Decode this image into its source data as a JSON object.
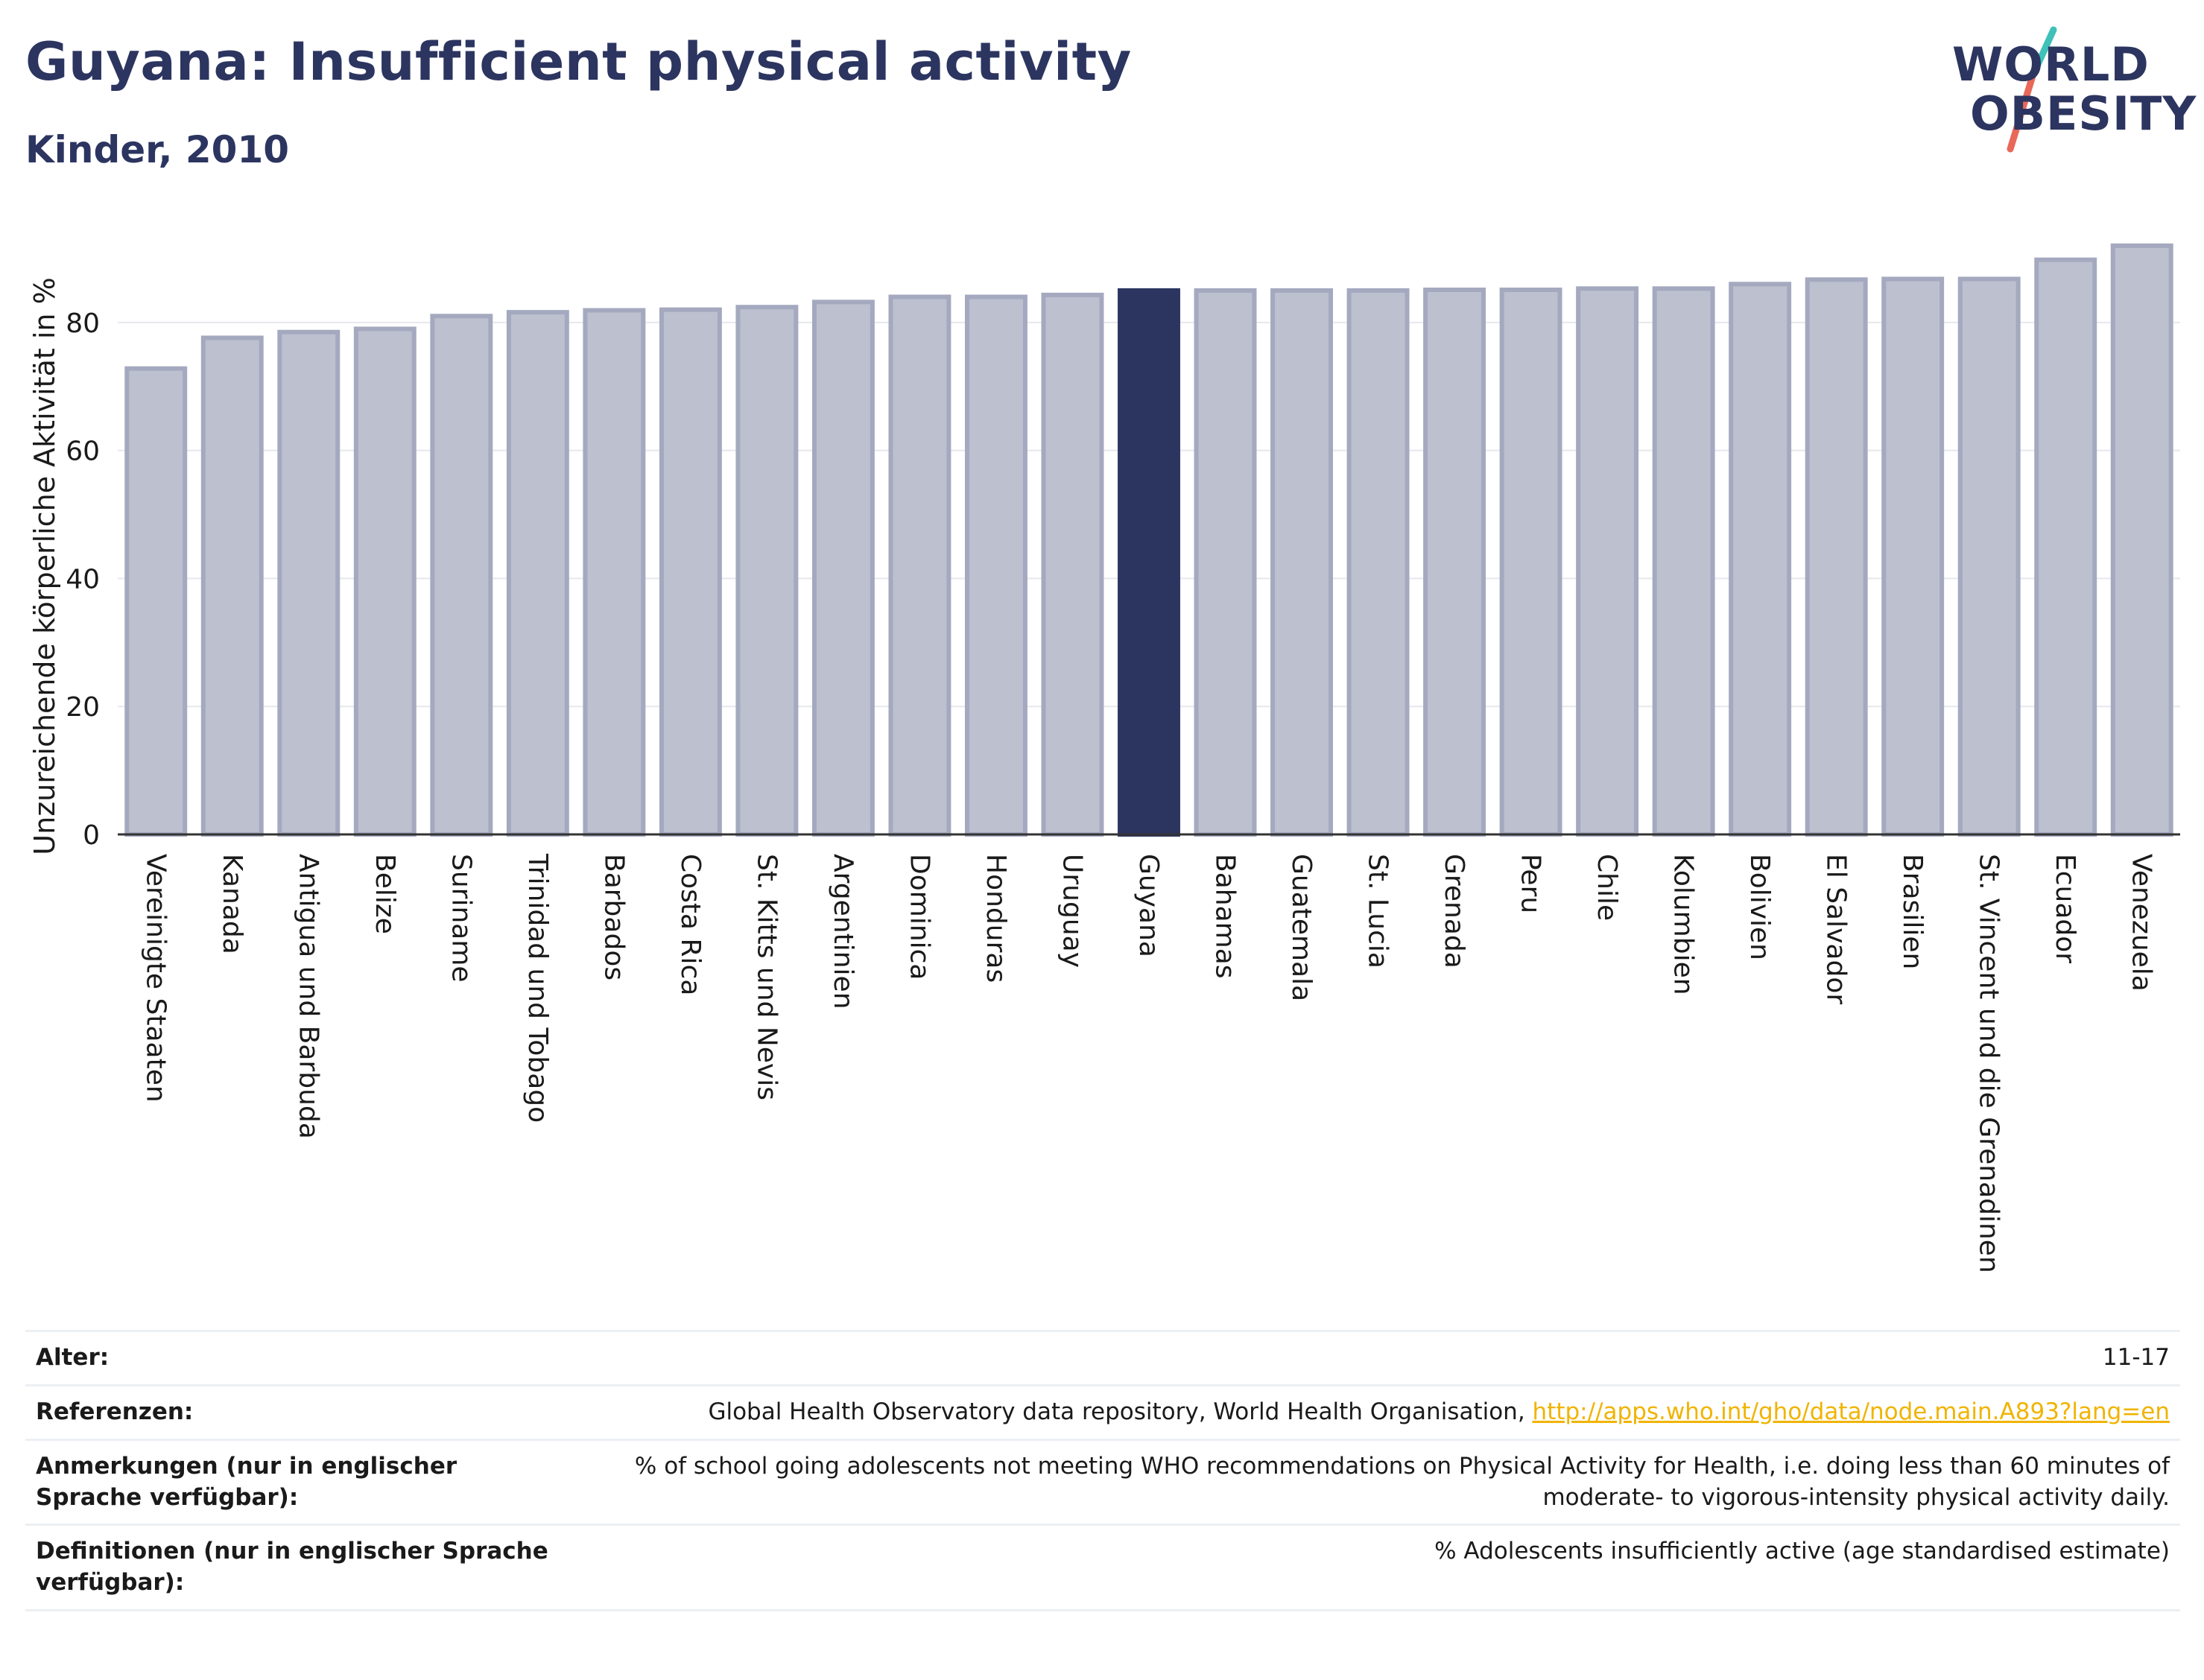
{
  "header": {
    "title": "Guyana: Insufficient physical activity",
    "subtitle": "Kinder, 2010"
  },
  "logo": {
    "line1": "WORLD",
    "line2": "OBESITY"
  },
  "colors": {
    "highlight": "#2c3560",
    "bar": "#bcc0cf",
    "bar_stroke": "#a4a9bf",
    "accent_teal": "#3fc1b9",
    "accent_red": "#e8685a"
  },
  "chart_data": {
    "type": "bar",
    "title": "Guyana: Insufficient physical activity",
    "subtitle": "Kinder, 2010",
    "xlabel": "",
    "ylabel": "Unzureichende körperliche Aktivität in %",
    "ylim": [
      0,
      95
    ],
    "yticks": [
      0,
      20,
      40,
      60,
      80
    ],
    "grid": true,
    "highlight": "Guyana",
    "categories": [
      "Vereinigte Staaten",
      "Kanada",
      "Antigua und Barbuda",
      "Belize",
      "Suriname",
      "Trinidad und Tobago",
      "Barbados",
      "Costa Rica",
      "St. Kitts und Nevis",
      "Argentinien",
      "Dominica",
      "Honduras",
      "Uruguay",
      "Guyana",
      "Bahamas",
      "Guatemala",
      "St. Lucia",
      "Grenada",
      "Peru",
      "Chile",
      "Kolumbien",
      "Bolivien",
      "El Salvador",
      "Brasilien",
      "St. Vincent und die Grenadinen",
      "Ecuador",
      "Venezuela"
    ],
    "values": [
      72.8,
      77.6,
      78.5,
      79.0,
      81.0,
      81.6,
      81.9,
      82.0,
      82.4,
      83.2,
      84.0,
      84.0,
      84.3,
      85.0,
      85.0,
      85.0,
      85.0,
      85.1,
      85.1,
      85.3,
      85.3,
      86.0,
      86.7,
      86.8,
      86.8,
      89.8,
      92.0
    ]
  },
  "meta": [
    {
      "key": "Alter:",
      "value": "11-17"
    },
    {
      "key": "Referenzen:",
      "value": "Global Health Observatory data repository, World Health Organisation, ",
      "link": "http://apps.who.int/gho/data/node.main.A893?lang=en"
    },
    {
      "key": "Anmerkungen (nur in englischer Sprache verfügbar):",
      "value": "% of school going adolescents not meeting WHO recommendations on Physical Activity for Health, i.e. doing less than 60 minutes of moderate- to vigorous-intensity physical activity daily."
    },
    {
      "key": "Definitionen (nur in englischer Sprache verfügbar):",
      "value": "% Adolescents insufficiently active (age standardised estimate)"
    }
  ]
}
